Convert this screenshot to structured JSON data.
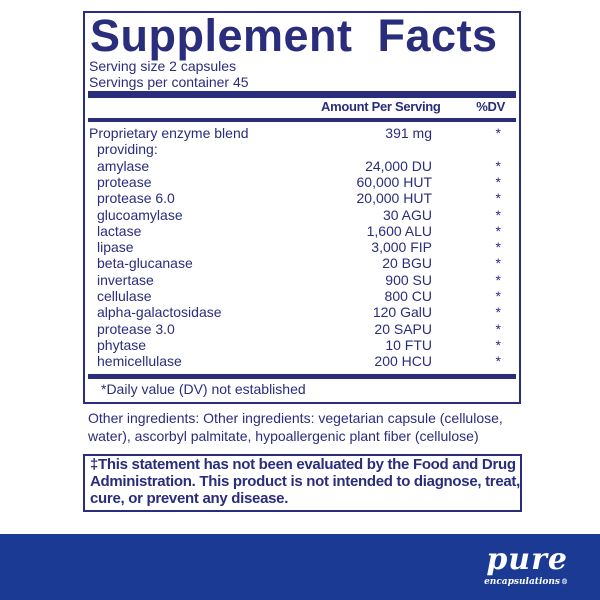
{
  "title": "Supplement Facts",
  "serving_size": "Serving size  2 capsules",
  "servings_per_container": "Servings per container  45",
  "headers": {
    "amount": "Amount Per Serving",
    "dv": "%DV"
  },
  "rows": [
    {
      "name": "Proprietary enzyme blend",
      "amount": "391 mg",
      "dv": "*"
    },
    {
      "name": "providing:",
      "amount": "",
      "dv": ""
    },
    {
      "name": "amylase",
      "amount": "24,000 DU",
      "dv": "*"
    },
    {
      "name": "protease",
      "amount": "60,000 HUT",
      "dv": "*"
    },
    {
      "name": "protease 6.0",
      "amount": "20,000 HUT",
      "dv": "*"
    },
    {
      "name": "glucoamylase",
      "amount": "30 AGU",
      "dv": "*"
    },
    {
      "name": "lactase",
      "amount": "1,600 ALU",
      "dv": "*"
    },
    {
      "name": "lipase",
      "amount": "3,000 FIP",
      "dv": "*"
    },
    {
      "name": "beta-glucanase",
      "amount": "20 BGU",
      "dv": "*"
    },
    {
      "name": "invertase",
      "amount": "900 SU",
      "dv": "*"
    },
    {
      "name": "cellulase",
      "amount": "800 CU",
      "dv": "*"
    },
    {
      "name": "alpha-galactosidase",
      "amount": "120 GalU",
      "dv": "*"
    },
    {
      "name": "protease 3.0",
      "amount": "20 SAPU",
      "dv": "*"
    },
    {
      "name": "phytase",
      "amount": "10 FTU",
      "dv": "*"
    },
    {
      "name": "hemicellulase",
      "amount": "200 HCU",
      "dv": "*"
    }
  ],
  "footnote": "*Daily value (DV) not established",
  "other_ingredients": "Other ingredients: Other ingredients: vegetarian capsule (cellulose, water), ascorbyl palmitate, hypoallergenic plant fiber (cellulose)",
  "statement": "‡This statement has not been evaluated by the Food and Drug Administration. This product is not intended to diagnose, treat, cure, or prevent any disease.",
  "brand": {
    "name": "pure",
    "tagline": "encapsulations",
    "mark": "®"
  },
  "colors": {
    "text": "#2a2d7c",
    "band": "#1b3a93"
  }
}
